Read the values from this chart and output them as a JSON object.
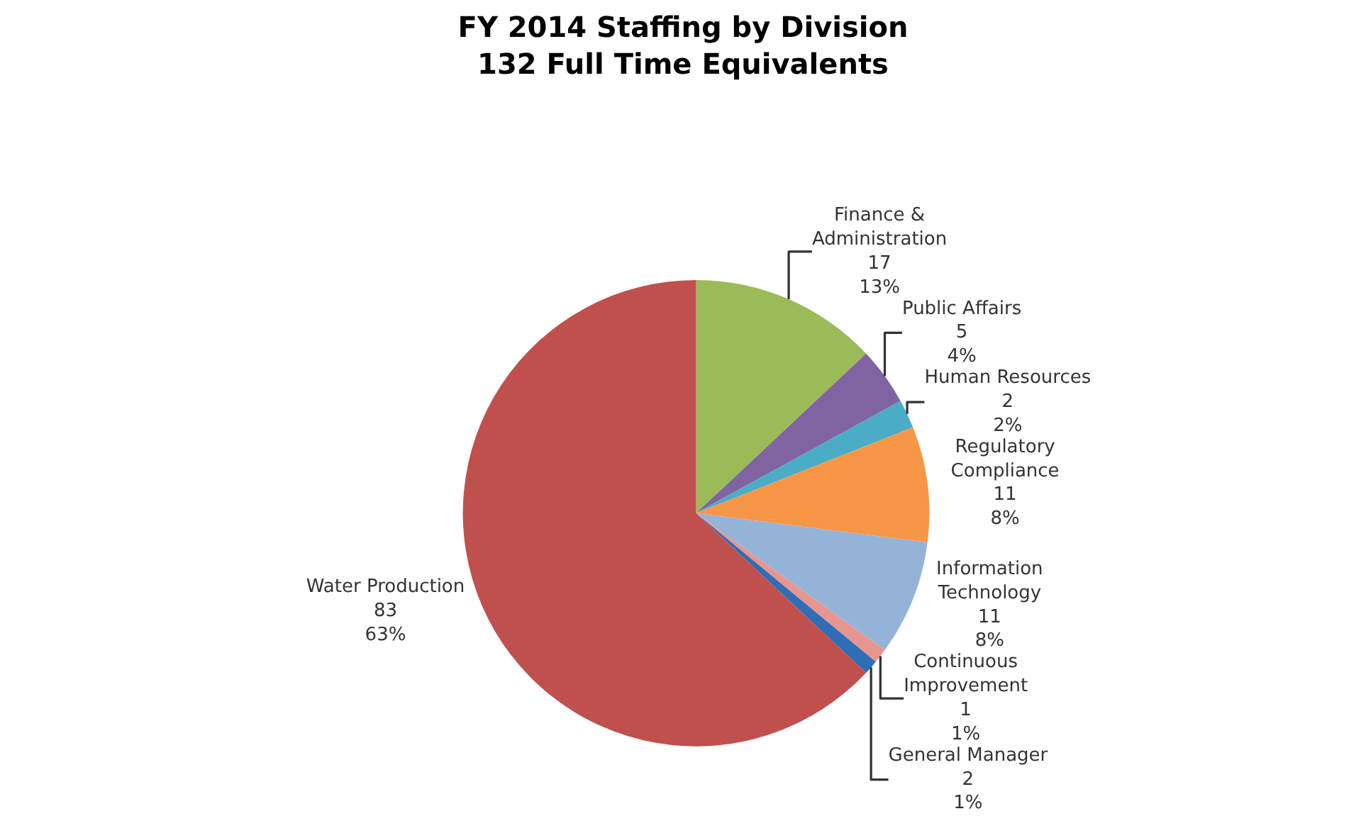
{
  "chart_data": {
    "type": "pie",
    "title": "FY 2014 Staffing by Division\n132 Full Time Equivalents",
    "categories": [
      "Finance & Administration",
      "Public Affairs",
      "Human Resources",
      "Regulatory Compliance",
      "Information Technology",
      "Continuous Improvement",
      "General Manager",
      "Water Production"
    ],
    "values": [
      13,
      4,
      2,
      8,
      8,
      1,
      1,
      63
    ],
    "value_labels": [
      "17\n13%",
      "5\n4%",
      "2\n2%",
      "11\n8%",
      "11\n8%",
      "1\n1%",
      "2\n1%",
      "83\n63%"
    ],
    "colors": [
      "#9bbb59",
      "#8064a2",
      "#4bacc6",
      "#f79646",
      "#95b3d7",
      "#e6958f",
      "#2f6db5",
      "#c0504d"
    ],
    "legend": false
  }
}
